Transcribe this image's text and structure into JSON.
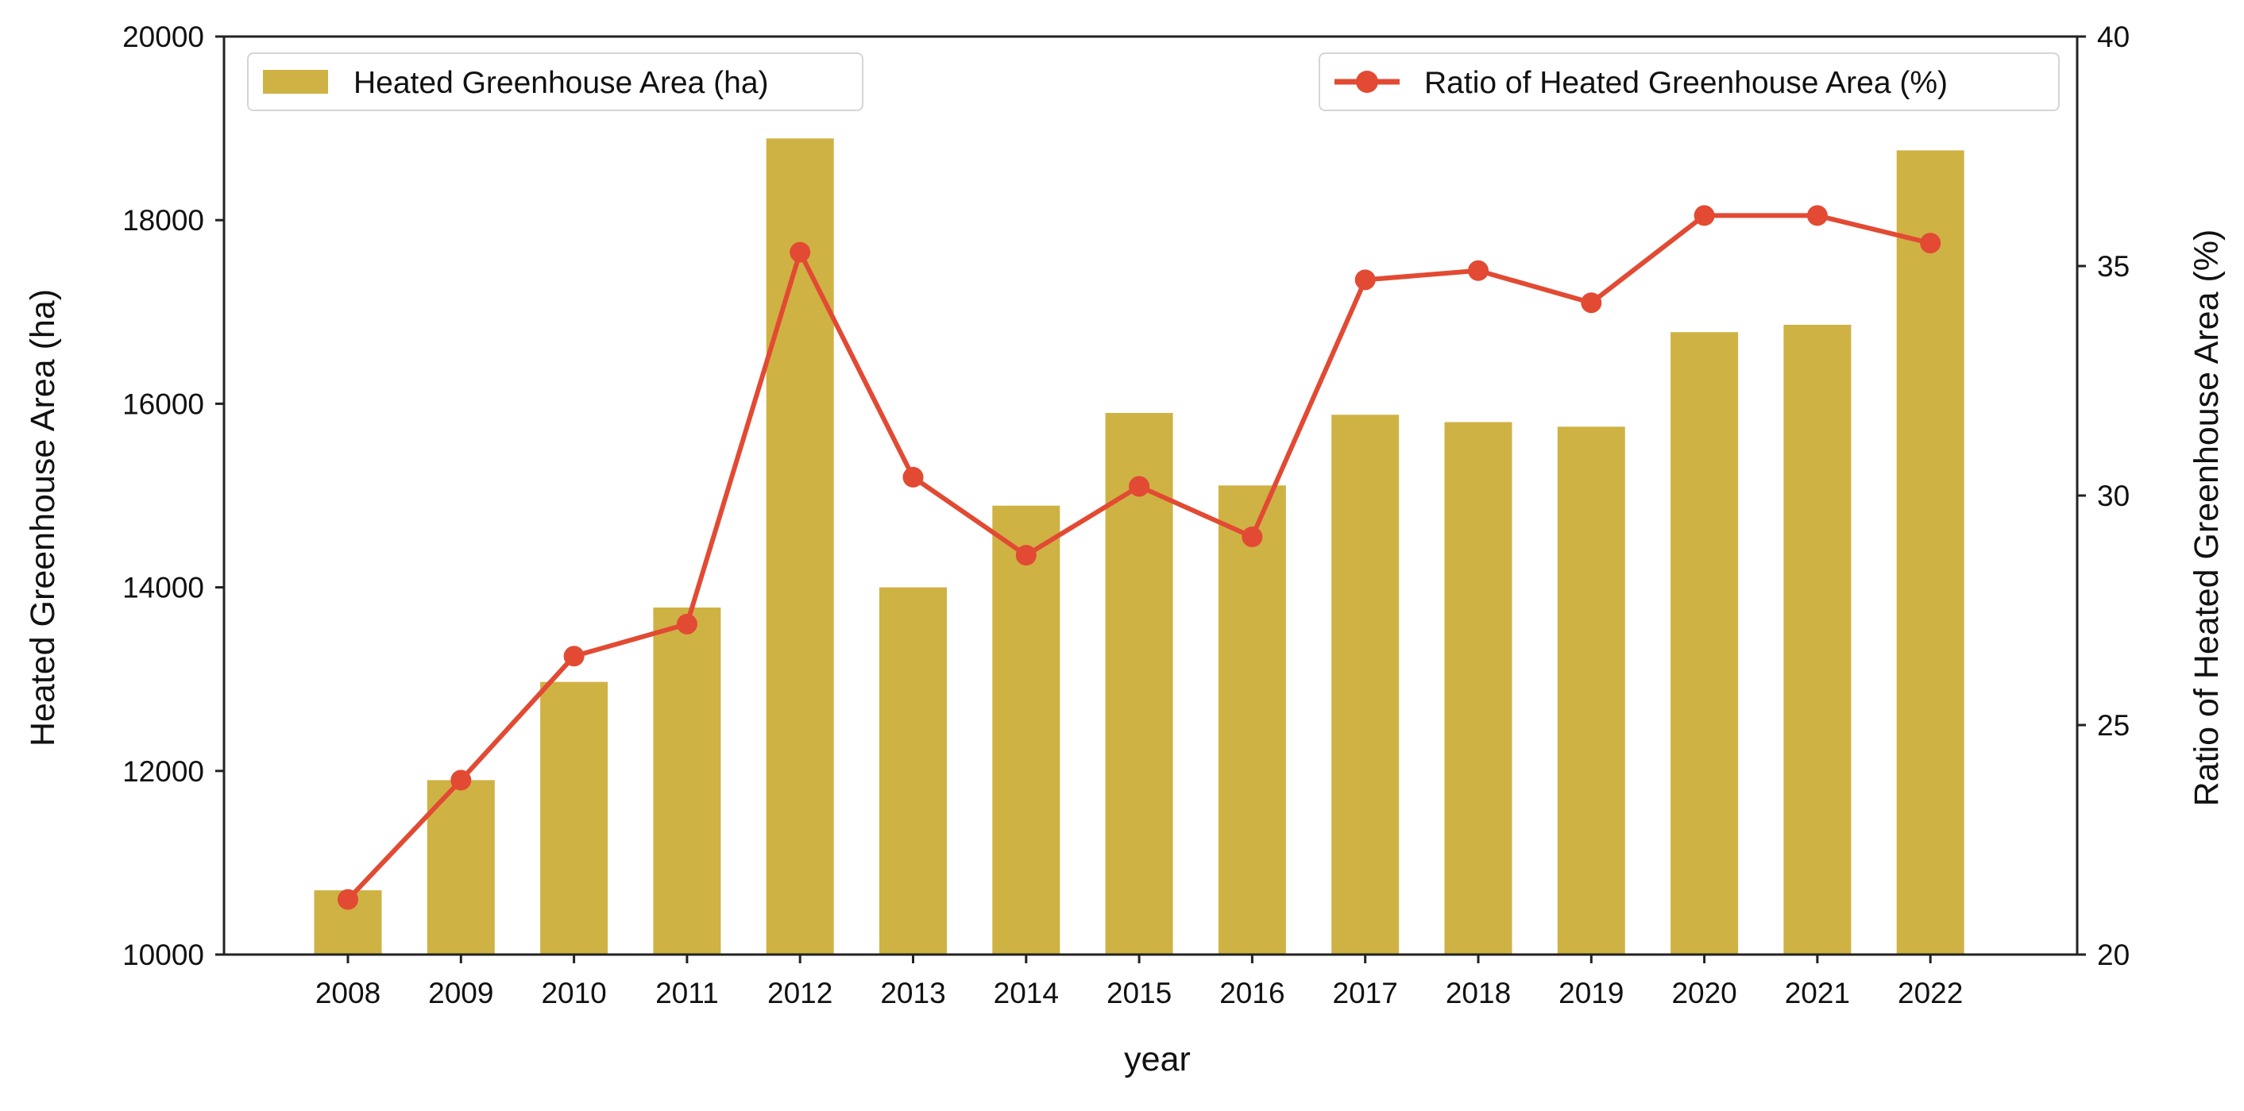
{
  "chart_data": {
    "type": "bar",
    "categories": [
      "2008",
      "2009",
      "2010",
      "2011",
      "2012",
      "2013",
      "2014",
      "2015",
      "2016",
      "2017",
      "2018",
      "2019",
      "2020",
      "2021",
      "2022"
    ],
    "series": [
      {
        "name": "Heated Greenhouse Area (ha)",
        "type": "bar",
        "axis": "left",
        "color": "#CFB244",
        "values": [
          10700,
          11900,
          12970,
          13780,
          18890,
          14000,
          14890,
          15900,
          15110,
          15880,
          15800,
          15750,
          16780,
          16860,
          18760
        ]
      },
      {
        "name": "Ratio of Heated Greenhouse Area (%)",
        "type": "line",
        "axis": "right",
        "color": "#E24A33",
        "marker": "circle",
        "values": [
          21.2,
          23.8,
          26.5,
          27.2,
          35.3,
          30.4,
          28.7,
          30.2,
          29.1,
          34.7,
          34.9,
          34.2,
          36.1,
          36.1,
          35.5
        ]
      }
    ],
    "xlabel": "year",
    "ylabel": "Heated Greenhouse Area (ha)",
    "y2label": "Ratio of Heated Greenhouse Area (%)",
    "ylim": [
      10000,
      20000
    ],
    "y2lim": [
      20,
      40
    ],
    "yticks": [
      10000,
      12000,
      14000,
      16000,
      18000,
      20000
    ],
    "y2ticks": [
      20,
      25,
      30,
      35,
      40
    ],
    "grid": false,
    "legend": [
      {
        "series": "Heated Greenhouse Area (ha)",
        "placement": "top-left"
      },
      {
        "series": "Ratio of Heated Greenhouse Area (%)",
        "placement": "top-right"
      }
    ]
  }
}
